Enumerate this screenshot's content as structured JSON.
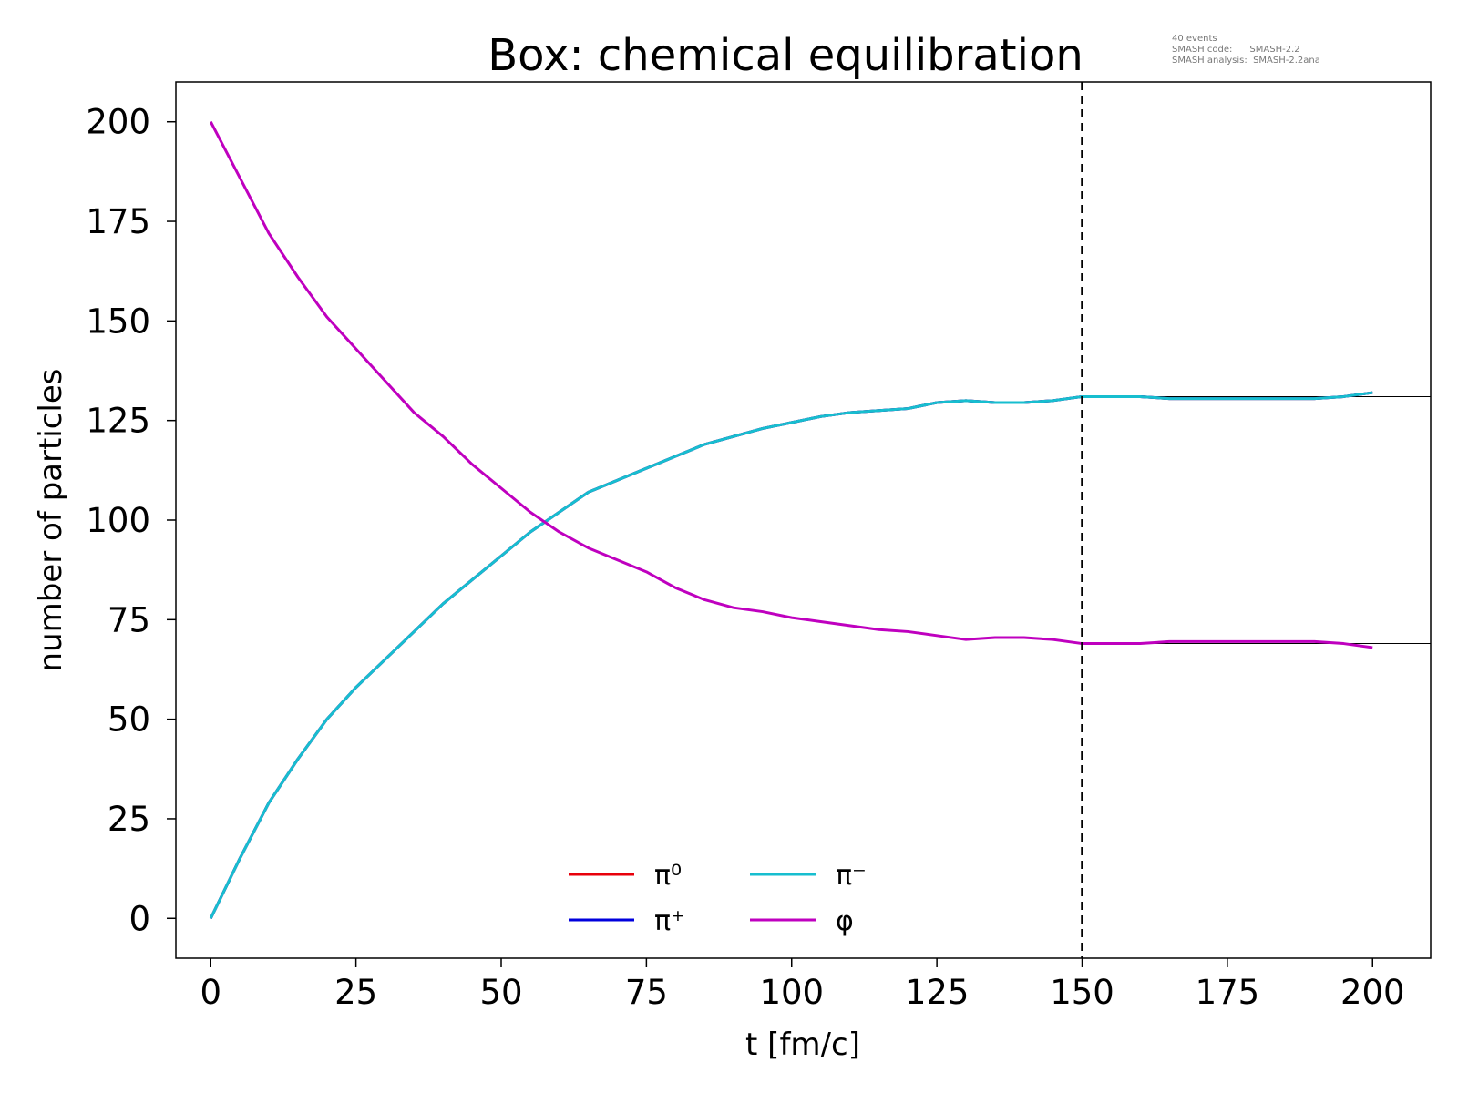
{
  "chart_data": {
    "type": "line",
    "title": "Box: chemical equilibration",
    "info": [
      "40 events",
      "SMASH code:      SMASH-2.2",
      "SMASH analysis:  SMASH-2.2ana"
    ],
    "xlabel": "t [fm/c]",
    "ylabel": "number of particles",
    "xlim": [
      -6,
      210
    ],
    "ylim": [
      -10,
      210
    ],
    "xticks": [
      0,
      25,
      50,
      75,
      100,
      125,
      150,
      175,
      200
    ],
    "yticks": [
      0,
      25,
      50,
      75,
      100,
      125,
      150,
      175,
      200
    ],
    "grid": false,
    "legend": {
      "placement": "lower-center",
      "columns": 3
    },
    "vline": {
      "x": 150,
      "style": "dashed",
      "color": "#000000"
    },
    "equilibrium_lines": [
      {
        "y": 131,
        "from_x": 150,
        "color": "#000000"
      },
      {
        "y": 69,
        "from_x": 150,
        "color": "#000000"
      }
    ],
    "x": [
      0,
      5,
      10,
      15,
      20,
      25,
      30,
      35,
      40,
      45,
      50,
      55,
      60,
      65,
      70,
      75,
      80,
      85,
      90,
      95,
      100,
      105,
      110,
      115,
      120,
      125,
      130,
      135,
      140,
      145,
      150,
      155,
      160,
      165,
      170,
      175,
      180,
      185,
      190,
      195,
      200
    ],
    "series": [
      {
        "name": "π⁰",
        "color": "#e8000b",
        "values": [
          0,
          15,
          29,
          40,
          50,
          58,
          65,
          72,
          79,
          85,
          91,
          97,
          102,
          107,
          110,
          113,
          116,
          119,
          121,
          123,
          124.5,
          126,
          127,
          127.5,
          128,
          129.5,
          130,
          129.5,
          129.5,
          130,
          131,
          131,
          131,
          130.5,
          130.5,
          130.5,
          130.5,
          130.5,
          130.5,
          131,
          132
        ]
      },
      {
        "name": "π⁺",
        "color": "#0000dd",
        "values": [
          0,
          15,
          29,
          40,
          50,
          58,
          65,
          72,
          79,
          85,
          91,
          97,
          102,
          107,
          110,
          113,
          116,
          119,
          121,
          123,
          124.5,
          126,
          127,
          127.5,
          128,
          129.5,
          130,
          129.5,
          129.5,
          130,
          131,
          131,
          131,
          130.5,
          130.5,
          130.5,
          130.5,
          130.5,
          130.5,
          131,
          132
        ]
      },
      {
        "name": "π⁻",
        "color": "#17becf",
        "values": [
          0,
          15,
          29,
          40,
          50,
          58,
          65,
          72,
          79,
          85,
          91,
          97,
          102,
          107,
          110,
          113,
          116,
          119,
          121,
          123,
          124.5,
          126,
          127,
          127.5,
          128,
          129.5,
          130,
          129.5,
          129.5,
          130,
          131,
          131,
          131,
          130.5,
          130.5,
          130.5,
          130.5,
          130.5,
          130.5,
          131,
          132
        ]
      },
      {
        "name": "φ",
        "color": "#bf00bf",
        "values": [
          200,
          186,
          172,
          161,
          151,
          143,
          135,
          127,
          121,
          114,
          108,
          102,
          97,
          93,
          90,
          87,
          83,
          80,
          78,
          77,
          75.5,
          74.5,
          73.5,
          72.5,
          72,
          71,
          70,
          70.5,
          70.5,
          70,
          69,
          69,
          69,
          69.5,
          69.5,
          69.5,
          69.5,
          69.5,
          69.5,
          69,
          68
        ]
      }
    ]
  }
}
